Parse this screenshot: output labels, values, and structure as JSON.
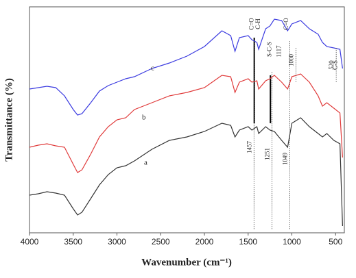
{
  "chart_data": {
    "type": "line",
    "x_label": "Wavenumber (cm⁻¹)",
    "y_label": "Transmittance (%)",
    "xlim": [
      4000,
      400
    ],
    "xticks": [
      4000,
      3500,
      3000,
      2500,
      2000,
      1500,
      1000,
      500
    ],
    "ylim": [
      0,
      330
    ],
    "x": [
      4000,
      3900,
      3800,
      3700,
      3600,
      3500,
      3450,
      3400,
      3300,
      3200,
      3100,
      3000,
      2900,
      2800,
      2600,
      2400,
      2200,
      2000,
      1800,
      1700,
      1650,
      1600,
      1500,
      1457,
      1400,
      1380,
      1300,
      1251,
      1200,
      1117,
      1049,
      1000,
      900,
      800,
      700,
      650,
      600,
      520,
      450,
      420
    ],
    "series": [
      {
        "name": "c",
        "color": "#3a3ae0",
        "values": [
          210,
          212,
          214,
          212,
          200,
          180,
          172,
          174,
          190,
          207,
          215,
          220,
          225,
          228,
          240,
          248,
          258,
          272,
          295,
          288,
          265,
          285,
          288,
          282,
          278,
          268,
          298,
          302,
          312,
          310,
          295,
          305,
          310,
          298,
          290,
          278,
          272,
          270,
          268,
          240
        ]
      },
      {
        "name": "b",
        "color": "#e03a3a",
        "values": [
          125,
          128,
          130,
          127,
          125,
          100,
          88,
          92,
          115,
          140,
          155,
          165,
          168,
          180,
          190,
          200,
          205,
          212,
          230,
          228,
          205,
          220,
          225,
          220,
          222,
          210,
          222,
          225,
          230,
          220,
          210,
          228,
          232,
          220,
          200,
          185,
          190,
          182,
          175,
          110
        ]
      },
      {
        "name": "a",
        "color": "#333333",
        "values": [
          55,
          57,
          60,
          58,
          55,
          35,
          26,
          30,
          50,
          70,
          85,
          95,
          98,
          105,
          122,
          135,
          140,
          148,
          160,
          157,
          140,
          150,
          155,
          150,
          155,
          145,
          155,
          150,
          148,
          135,
          125,
          160,
          168,
          155,
          145,
          140,
          145,
          135,
          130,
          10
        ]
      }
    ],
    "annotations": [
      {
        "text": "C=O",
        "x": 1457
      },
      {
        "text": "C-H",
        "x": 1380
      },
      {
        "text": "S-C-S",
        "x": 1251
      },
      {
        "text": "C=O",
        "x": 1060
      },
      {
        "text": "1117",
        "x": 1140
      },
      {
        "text": "1000",
        "x": 1000
      },
      {
        "text": "C-S",
        "x": 500
      },
      {
        "text": "520",
        "x": 540
      },
      {
        "text": "1457",
        "x": 1480
      },
      {
        "text": "1251",
        "x": 1275
      },
      {
        "text": "1049",
        "x": 1070
      }
    ]
  }
}
